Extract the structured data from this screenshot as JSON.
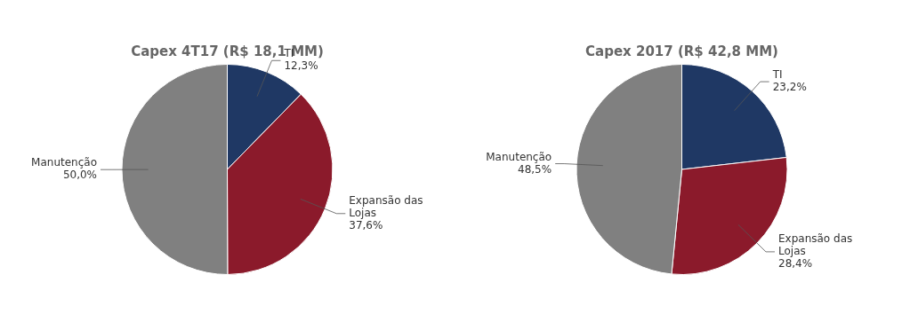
{
  "chart_data": [
    {
      "type": "pie",
      "title": "Capex 4T17 (R$ 18,1 MM)",
      "categories": [
        "TI",
        "Expansão das\nLojas",
        "Manutenção"
      ],
      "values": [
        12.3,
        37.6,
        50.0
      ],
      "value_labels": [
        "12,3%",
        "37,6%",
        "50,0%"
      ],
      "colors": [
        "#1F3864",
        "#8B1A2B",
        "#808080"
      ],
      "data_labels": true
    },
    {
      "type": "pie",
      "title": "Capex 2017 (R$ 42,8 MM)",
      "categories": [
        "TI",
        "Expansão das\nLojas",
        "Manutenção"
      ],
      "values": [
        23.2,
        28.4,
        48.5
      ],
      "value_labels": [
        "23,2%",
        "28,4%",
        "48,5%"
      ],
      "colors": [
        "#1F3864",
        "#8B1A2B",
        "#808080"
      ],
      "data_labels": true
    }
  ]
}
